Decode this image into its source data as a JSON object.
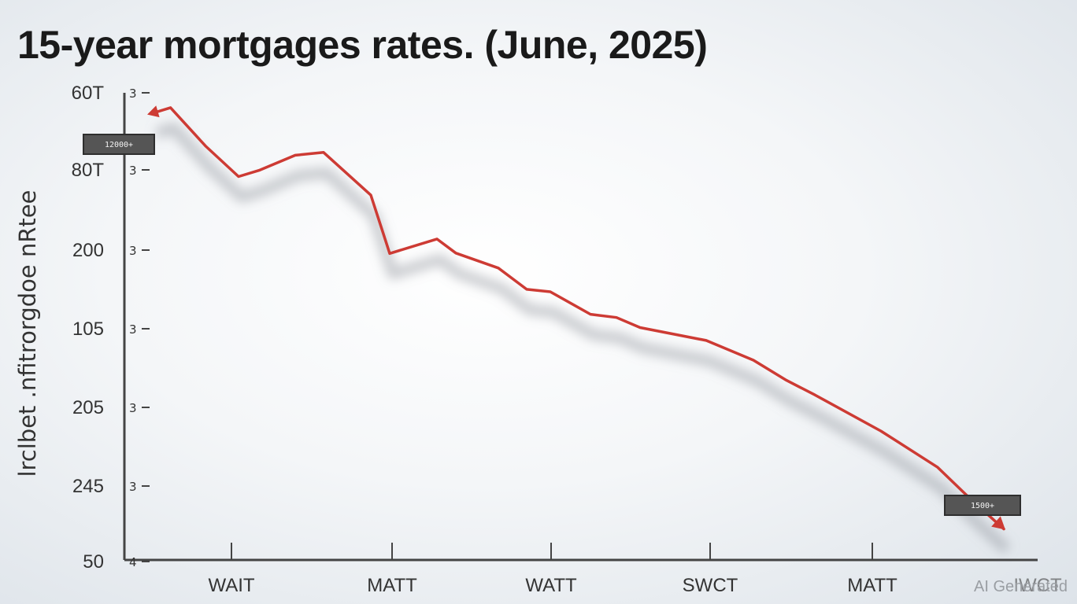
{
  "watermark": "AI Generated",
  "chart_data": {
    "type": "line",
    "title": "15-year mortgages rates. (June, 2025)",
    "ylabel": "lrclbet .nfitrorgdoe nRtee",
    "xlabel": "",
    "y_ticks": [
      "60T",
      "80T",
      "200",
      "105",
      "205",
      "245",
      "50"
    ],
    "y_tick_marks": [
      "3",
      "3",
      "3",
      "3",
      "3",
      "3",
      "4"
    ],
    "x_ticks": [
      "WAIT",
      "MATT",
      "WATT",
      "SWCT",
      "MATT"
    ],
    "x_ticks_extra": "IWCT",
    "grid": false,
    "legend": "none",
    "line_color": "#cd3b34",
    "start_badge": "12000+",
    "end_badge": "1500+",
    "series": [
      {
        "x": [
          0.0,
          0.36,
          1.1,
          1.8,
          2.25,
          3.0,
          3.6,
          4.6,
          4.86,
          5.0,
          6.0,
          6.4,
          7.3,
          7.9,
          8.4,
          9.25,
          9.8,
          10.3,
          11.7,
          12.7,
          13.4,
          14.0,
          15.4,
          16.6,
          17.3,
          18.0
        ],
        "y": [
          6.1,
          6.23,
          5.28,
          4.52,
          4.68,
          5.05,
          5.12,
          4.06,
          3.12,
          2.61,
          2.97,
          2.62,
          2.25,
          1.72,
          1.66,
          1.1,
          1.02,
          0.77,
          0.45,
          -0.04,
          -0.54,
          -0.9,
          -1.8,
          -2.7,
          -3.49,
          -4.23
        ]
      }
    ]
  }
}
